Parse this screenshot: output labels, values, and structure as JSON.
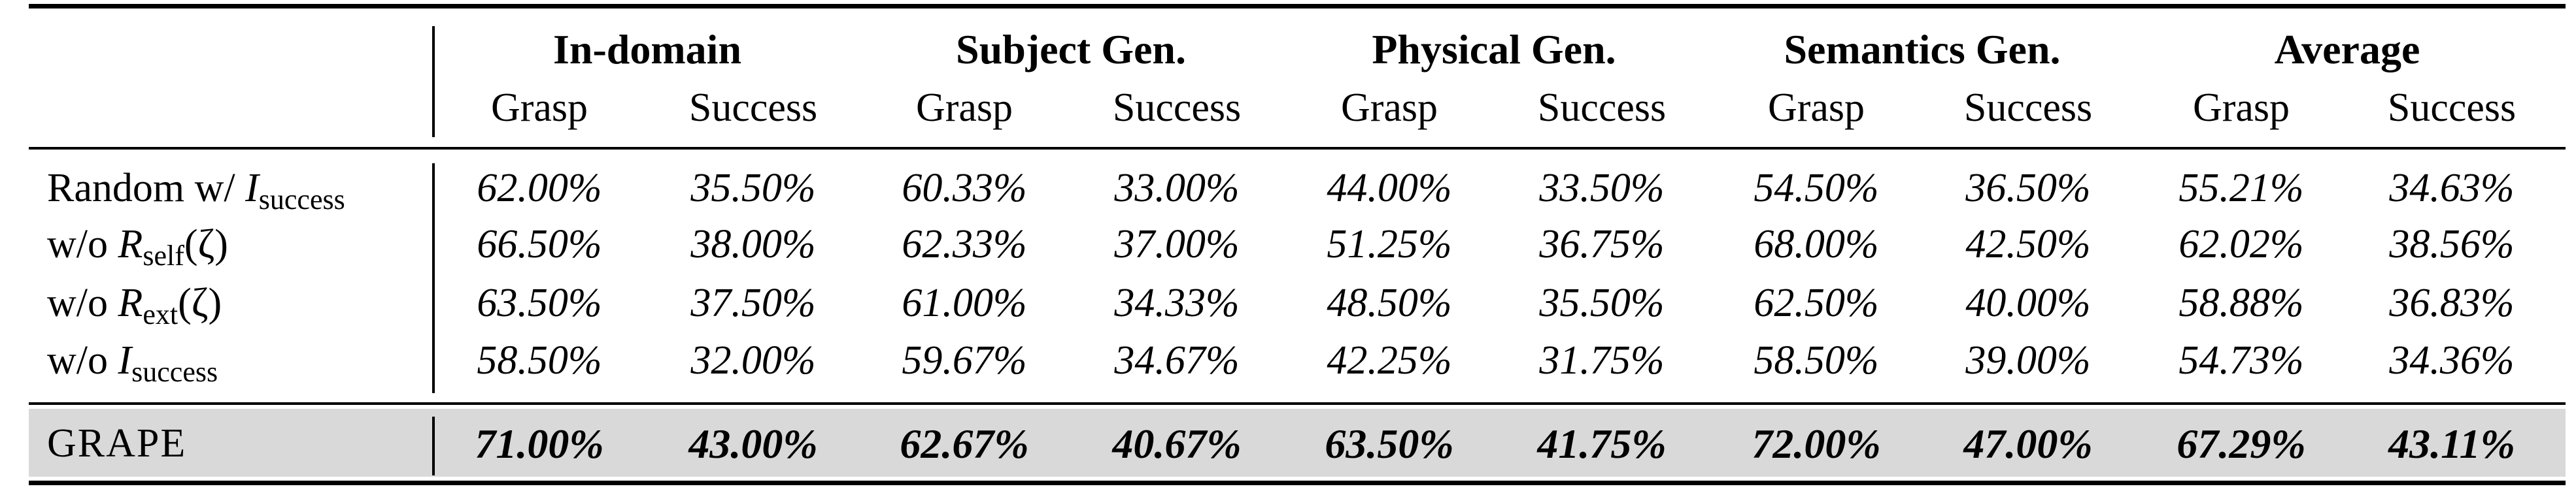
{
  "table": {
    "groups": [
      "In-domain",
      "Subject Gen.",
      "Physical Gen.",
      "Semantics Gen.",
      "Average"
    ],
    "subheaders": [
      "Grasp",
      "Success",
      "Grasp",
      "Success",
      "Grasp",
      "Success",
      "Grasp",
      "Success",
      "Grasp",
      "Success"
    ],
    "rows": [
      {
        "label_prefix": "Random w/ ",
        "label_symbol": "I",
        "label_subscript": "success",
        "label_suffix": "",
        "values": [
          "62.00%",
          "35.50%",
          "60.33%",
          "33.00%",
          "44.00%",
          "33.50%",
          "54.50%",
          "36.50%",
          "55.21%",
          "34.63%"
        ]
      },
      {
        "label_prefix": "w/o ",
        "label_symbol": "R",
        "label_subscript": "self",
        "label_suffix": "(ζ)",
        "values": [
          "66.50%",
          "38.00%",
          "62.33%",
          "37.00%",
          "51.25%",
          "36.75%",
          "68.00%",
          "42.50%",
          "62.02%",
          "38.56%"
        ]
      },
      {
        "label_prefix": "w/o ",
        "label_symbol": "R",
        "label_subscript": "ext",
        "label_suffix": "(ζ)",
        "values": [
          "63.50%",
          "37.50%",
          "61.00%",
          "34.33%",
          "48.50%",
          "35.50%",
          "62.50%",
          "40.00%",
          "58.88%",
          "36.83%"
        ]
      },
      {
        "label_prefix": "w/o ",
        "label_symbol": "I",
        "label_subscript": "success",
        "label_suffix": "",
        "values": [
          "58.50%",
          "32.00%",
          "59.67%",
          "34.67%",
          "42.25%",
          "31.75%",
          "58.50%",
          "39.00%",
          "54.73%",
          "34.36%"
        ]
      }
    ],
    "highlight_row": {
      "label": "GRAPE",
      "values": [
        "71.00%",
        "43.00%",
        "62.67%",
        "40.67%",
        "63.50%",
        "41.75%",
        "72.00%",
        "47.00%",
        "67.29%",
        "43.11%"
      ]
    },
    "highlight_color": "#d9d9d9"
  }
}
